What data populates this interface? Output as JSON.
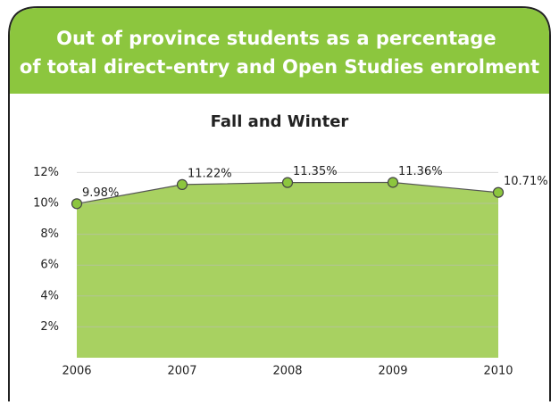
{
  "chart_data": {
    "type": "area",
    "title": "Out of province students as a percentage of total direct-entry and Open Studies enrolment",
    "subtitle": "Fall and Winter",
    "categories": [
      "2006",
      "2007",
      "2008",
      "2009",
      "2010"
    ],
    "values": [
      9.98,
      11.22,
      11.35,
      11.36,
      10.71
    ],
    "value_labels": [
      "9.98%",
      "11.22%",
      "11.35%",
      "11.36%",
      "10.71%"
    ],
    "color": "#a8d161",
    "ylim": [
      0,
      12
    ],
    "yticks": [
      {
        "value": 2,
        "label": "2%"
      },
      {
        "value": 4,
        "label": "4%"
      },
      {
        "value": 6,
        "label": "6%"
      },
      {
        "value": 8,
        "label": "8%"
      },
      {
        "value": 10,
        "label": "10%"
      },
      {
        "value": 12,
        "label": "12%"
      }
    ],
    "grid": true
  }
}
